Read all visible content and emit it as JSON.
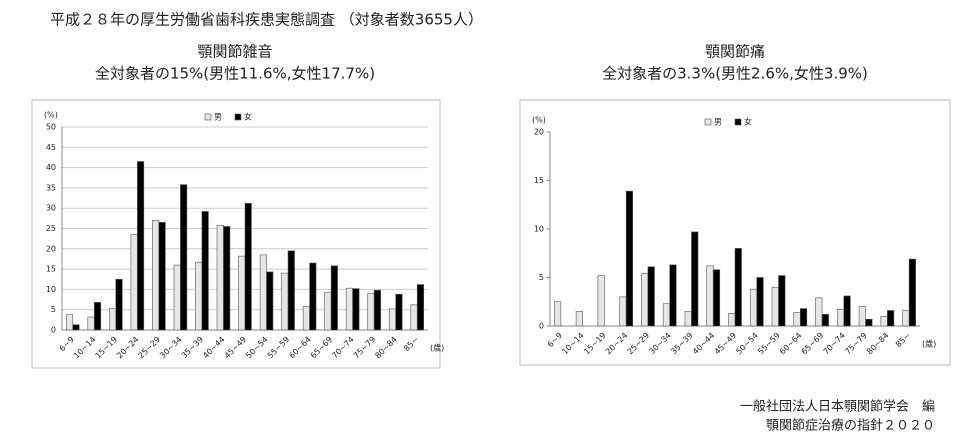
{
  "title": "平成２８年の厚生労働省歯科疾患実態調査 （対象者数3655人）",
  "footer": [
    "一般社団法人日本顎関節学会　編",
    "顎関節症治療の指針２０２０"
  ],
  "chart_data": [
    {
      "type": "bar",
      "title": "顎関節雑音",
      "subtitle": "全対象者の15%(男性11.6%,女性17.7%)",
      "y_unit": "(%)",
      "x_unit": "(歳)",
      "categories": [
        "6~9",
        "10~14",
        "15~19",
        "20~24",
        "25~29",
        "30~34",
        "35~39",
        "40~44",
        "45~49",
        "50~54",
        "55~59",
        "60~64",
        "65~69",
        "70~74",
        "75~79",
        "80~84",
        "85~"
      ],
      "series": [
        {
          "name": "男",
          "color": "#e6e6e6",
          "values": [
            3.8,
            3.2,
            5.3,
            23.5,
            27,
            16,
            16.7,
            25.8,
            18.2,
            18.5,
            14,
            5.8,
            9.3,
            10.3,
            9,
            5.2,
            6.2
          ]
        },
        {
          "name": "女",
          "color": "#000000",
          "values": [
            1.3,
            6.8,
            12.5,
            41.5,
            26.5,
            35.8,
            29.2,
            25.5,
            31.2,
            14.3,
            19.5,
            16.5,
            15.8,
            10.2,
            9.8,
            8.8,
            11.2
          ]
        }
      ],
      "ylim": [
        0,
        50
      ],
      "yticks": [
        0,
        5,
        10,
        15,
        20,
        25,
        30,
        35,
        40,
        45,
        50
      ],
      "grid": true,
      "legend": "top"
    },
    {
      "type": "bar",
      "title": "顎関節痛",
      "subtitle": "全対象者の3.3%(男性2.6%,女性3.9%)",
      "y_unit": "(%)",
      "x_unit": "(歳)",
      "categories": [
        "6~9",
        "10~14",
        "15~19",
        "20~24",
        "25~29",
        "30~34",
        "35~39",
        "40~44",
        "45~49",
        "50~54",
        "55~59",
        "60~64",
        "65~69",
        "70~74",
        "75~79",
        "80~84",
        "85~"
      ],
      "series": [
        {
          "name": "男",
          "color": "#e6e6e6",
          "values": [
            2.5,
            1.5,
            5.2,
            3.0,
            5.4,
            2.3,
            1.5,
            6.2,
            1.3,
            3.8,
            4.0,
            1.4,
            2.9,
            1.7,
            2.0,
            1.0,
            1.6
          ]
        },
        {
          "name": "女",
          "color": "#000000",
          "values": [
            0,
            0,
            0,
            13.9,
            6.1,
            6.3,
            9.7,
            5.8,
            8.0,
            5.0,
            5.2,
            1.8,
            1.2,
            3.1,
            0.7,
            1.6,
            6.9
          ]
        }
      ],
      "ylim": [
        0,
        20
      ],
      "yticks": [
        0,
        5,
        10,
        15,
        20
      ],
      "grid": false,
      "legend": "top"
    }
  ]
}
